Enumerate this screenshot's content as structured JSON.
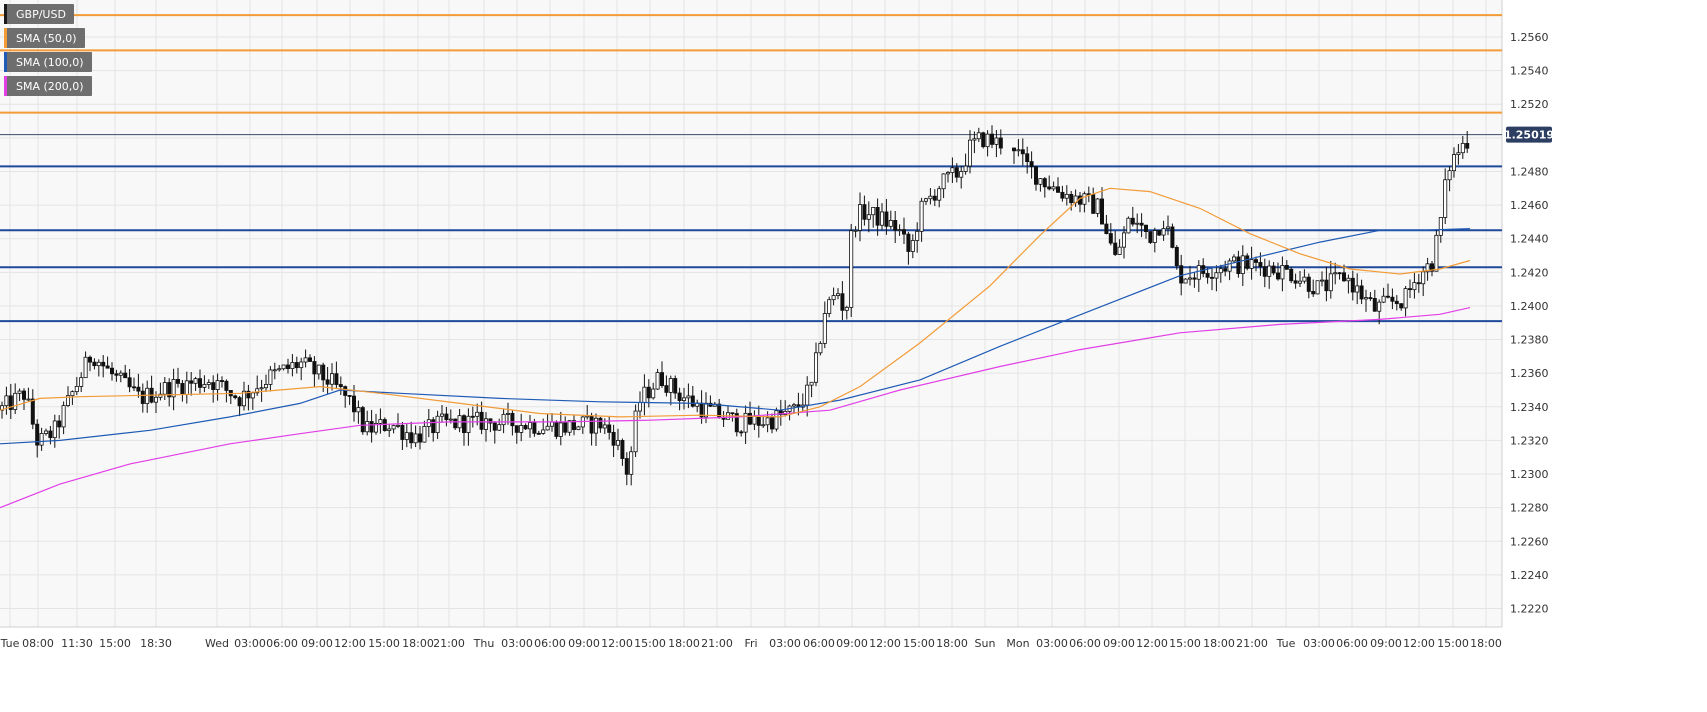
{
  "legend": [
    {
      "label": "GBP/USD",
      "color": "#1a1a1a"
    },
    {
      "label": "SMA (50,0)",
      "color": "#f29b37"
    },
    {
      "label": "SMA (100,0)",
      "color": "#1f5ab5"
    },
    {
      "label": "SMA (200,0)",
      "color": "#e23ee8"
    }
  ],
  "last_price_label": "1.25019",
  "colors": {
    "background": "#f8f8f8",
    "grid": "#e4e4e4",
    "candle": "#111111",
    "sma50": "#f29b37",
    "sma100": "#1f5ab5",
    "sma200": "#e23ee8",
    "resistance": "#f29b37",
    "support": "#1f4a9c",
    "last_price_bg": "#2d3e63"
  },
  "chart_data": {
    "type": "candlestick",
    "title": "",
    "symbol": "GBP/USD",
    "ylim": [
      1.2209,
      1.2582
    ],
    "y_ticks": [
      1.222,
      1.224,
      1.226,
      1.228,
      1.23,
      1.232,
      1.234,
      1.236,
      1.238,
      1.24,
      1.242,
      1.244,
      1.246,
      1.248,
      1.25,
      1.252,
      1.254,
      1.256
    ],
    "y_tick_labels": [
      "1.2220",
      "1.2240",
      "1.2260",
      "1.2280",
      "1.2300",
      "1.2320",
      "1.2340",
      "1.2360",
      "1.2380",
      "1.2400",
      "1.2420",
      "1.2440",
      "1.2460",
      "1.2480",
      "1.2500",
      "1.2520",
      "1.2540",
      "1.2560"
    ],
    "x_ticks": [
      "Tue",
      "08:00",
      "11:30",
      "15:00",
      "18:30",
      "Wed",
      "03:00",
      "06:00",
      "09:00",
      "12:00",
      "15:00",
      "18:00",
      "21:00",
      "Thu",
      "03:00",
      "06:00",
      "09:00",
      "12:00",
      "15:00",
      "18:00",
      "21:00",
      "Fri",
      "03:00",
      "06:00",
      "09:00",
      "12:00",
      "15:00",
      "18:00",
      "Sun",
      "Mon",
      "03:00",
      "06:00",
      "09:00",
      "12:00",
      "15:00",
      "18:00",
      "21:00",
      "Tue",
      "03:00",
      "06:00",
      "09:00",
      "12:00",
      "15:00",
      "18:00"
    ],
    "last_price": 1.25019,
    "horizontal_levels": {
      "resistance": [
        1.2573,
        1.2552,
        1.2515
      ],
      "support": [
        1.2483,
        1.2445,
        1.2423,
        1.2391
      ]
    },
    "price_path": [
      [
        0,
        1.2338
      ],
      [
        25,
        1.2348
      ],
      [
        38,
        1.2318
      ],
      [
        55,
        1.2326
      ],
      [
        70,
        1.2345
      ],
      [
        92,
        1.2372
      ],
      [
        110,
        1.236
      ],
      [
        140,
        1.2345
      ],
      [
        170,
        1.2352
      ],
      [
        210,
        1.2356
      ],
      [
        240,
        1.2345
      ],
      [
        270,
        1.2358
      ],
      [
        300,
        1.2366
      ],
      [
        330,
        1.2355
      ],
      [
        352,
        1.2342
      ],
      [
        365,
        1.2326
      ],
      [
        390,
        1.233
      ],
      [
        415,
        1.2322
      ],
      [
        440,
        1.233
      ],
      [
        480,
        1.2331
      ],
      [
        520,
        1.233
      ],
      [
        560,
        1.2328
      ],
      [
        600,
        1.233
      ],
      [
        615,
        1.2322
      ],
      [
        628,
        1.23
      ],
      [
        638,
        1.2342
      ],
      [
        660,
        1.2358
      ],
      [
        680,
        1.2347
      ],
      [
        700,
        1.234
      ],
      [
        720,
        1.2335
      ],
      [
        740,
        1.233
      ],
      [
        770,
        1.2332
      ],
      [
        795,
        1.2338
      ],
      [
        812,
        1.2352
      ],
      [
        825,
        1.2398
      ],
      [
        838,
        1.2408
      ],
      [
        846,
        1.2394
      ],
      [
        852,
        1.2448
      ],
      [
        862,
        1.2456
      ],
      [
        880,
        1.2452
      ],
      [
        898,
        1.2446
      ],
      [
        910,
        1.243
      ],
      [
        920,
        1.2456
      ],
      [
        940,
        1.2472
      ],
      [
        960,
        1.248
      ],
      [
        970,
        1.2494
      ],
      [
        982,
        1.25
      ],
      [
        995,
        1.2497
      ],
      [
        1012,
        1.2498
      ],
      [
        1022,
        1.2486
      ],
      [
        1040,
        1.2476
      ],
      [
        1060,
        1.2468
      ],
      [
        1085,
        1.2462
      ],
      [
        1100,
        1.2458
      ],
      [
        1115,
        1.2428
      ],
      [
        1130,
        1.2452
      ],
      [
        1150,
        1.2442
      ],
      [
        1165,
        1.2452
      ],
      [
        1178,
        1.2418
      ],
      [
        1200,
        1.242
      ],
      [
        1230,
        1.2425
      ],
      [
        1260,
        1.2424
      ],
      [
        1290,
        1.242
      ],
      [
        1320,
        1.241
      ],
      [
        1345,
        1.2418
      ],
      [
        1362,
        1.2406
      ],
      [
        1375,
        1.2398
      ],
      [
        1390,
        1.2402
      ],
      [
        1405,
        1.2404
      ],
      [
        1418,
        1.2418
      ],
      [
        1432,
        1.2426
      ],
      [
        1440,
        1.2448
      ],
      [
        1448,
        1.2482
      ],
      [
        1458,
        1.2492
      ],
      [
        1470,
        1.2501
      ]
    ],
    "sma50_path": [
      [
        0,
        1.2338
      ],
      [
        40,
        1.2345
      ],
      [
        80,
        1.2346
      ],
      [
        160,
        1.2347
      ],
      [
        240,
        1.2348
      ],
      [
        320,
        1.2352
      ],
      [
        380,
        1.2348
      ],
      [
        460,
        1.2342
      ],
      [
        540,
        1.2336
      ],
      [
        620,
        1.2334
      ],
      [
        700,
        1.2335
      ],
      [
        780,
        1.2334
      ],
      [
        820,
        1.234
      ],
      [
        860,
        1.2352
      ],
      [
        920,
        1.2378
      ],
      [
        990,
        1.2412
      ],
      [
        1040,
        1.2442
      ],
      [
        1080,
        1.2464
      ],
      [
        1110,
        1.247
      ],
      [
        1150,
        1.2468
      ],
      [
        1200,
        1.2458
      ],
      [
        1250,
        1.2443
      ],
      [
        1300,
        1.2431
      ],
      [
        1350,
        1.2422
      ],
      [
        1400,
        1.2419
      ],
      [
        1440,
        1.2422
      ],
      [
        1470,
        1.2427
      ]
    ],
    "sma100_path": [
      [
        0,
        1.2318
      ],
      [
        60,
        1.232
      ],
      [
        150,
        1.2326
      ],
      [
        230,
        1.2334
      ],
      [
        300,
        1.2342
      ],
      [
        340,
        1.235
      ],
      [
        400,
        1.2348
      ],
      [
        500,
        1.2345
      ],
      [
        600,
        1.2343
      ],
      [
        700,
        1.2342
      ],
      [
        780,
        1.2338
      ],
      [
        840,
        1.2344
      ],
      [
        920,
        1.2356
      ],
      [
        1000,
        1.2376
      ],
      [
        1060,
        1.239
      ],
      [
        1120,
        1.2404
      ],
      [
        1180,
        1.2418
      ],
      [
        1250,
        1.2428
      ],
      [
        1320,
        1.2438
      ],
      [
        1380,
        1.2445
      ],
      [
        1420,
        1.2445
      ],
      [
        1470,
        1.2446
      ]
    ],
    "sma200_path": [
      [
        0,
        1.228
      ],
      [
        60,
        1.2294
      ],
      [
        130,
        1.2306
      ],
      [
        230,
        1.2318
      ],
      [
        300,
        1.2324
      ],
      [
        360,
        1.2329
      ],
      [
        450,
        1.2331
      ],
      [
        560,
        1.2331
      ],
      [
        650,
        1.2332
      ],
      [
        740,
        1.2334
      ],
      [
        830,
        1.2338
      ],
      [
        900,
        1.235
      ],
      [
        1000,
        1.2364
      ],
      [
        1080,
        1.2374
      ],
      [
        1180,
        1.2384
      ],
      [
        1280,
        1.2389
      ],
      [
        1380,
        1.2392
      ],
      [
        1440,
        1.2395
      ],
      [
        1470,
        1.2399
      ]
    ]
  }
}
